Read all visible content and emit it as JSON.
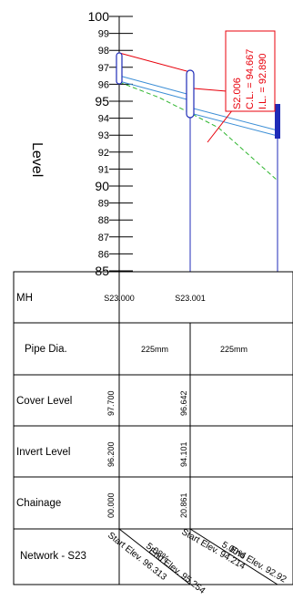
{
  "axis": {
    "title": "Level",
    "ticks": [
      {
        "value": 100,
        "label": "100",
        "major": true
      },
      {
        "value": 99,
        "label": "99",
        "major": false
      },
      {
        "value": 98,
        "label": "98",
        "major": false
      },
      {
        "value": 97,
        "label": "97",
        "major": false
      },
      {
        "value": 96,
        "label": "96",
        "major": false
      },
      {
        "value": 95,
        "label": "95",
        "major": true
      },
      {
        "value": 94,
        "label": "94",
        "major": false
      },
      {
        "value": 93,
        "label": "93",
        "major": false
      },
      {
        "value": 92,
        "label": "92",
        "major": false
      },
      {
        "value": 91,
        "label": "91",
        "major": false
      },
      {
        "value": 90,
        "label": "90",
        "major": true
      },
      {
        "value": 89,
        "label": "89",
        "major": false
      },
      {
        "value": 88,
        "label": "88",
        "major": false
      },
      {
        "value": 87,
        "label": "87",
        "major": false
      },
      {
        "value": 86,
        "label": "86",
        "major": false
      },
      {
        "value": 85,
        "label": "85",
        "major": true
      }
    ]
  },
  "annotation": {
    "manhole": "S2.006",
    "cover_level": "C.L. = 94.667",
    "invert_level": "I.L. = 92.890"
  },
  "table": {
    "rows": {
      "mh": "MH",
      "pipe_dia": "Pipe Dia.",
      "cover_level": "Cover Level",
      "invert_level": "Invert Level",
      "chainage": "Chainage",
      "network": "Network - S23"
    },
    "manholes": [
      {
        "name": "S23.000",
        "cover": "97.700",
        "invert": "96.200",
        "chainage": "00.000"
      },
      {
        "name": "S23.001",
        "cover": "96.642",
        "invert": "94.101",
        "chainage": "20.861"
      }
    ],
    "pipes": [
      {
        "dia": "225mm",
        "gradient": "5.08%",
        "start_elev": "Start Elev. 96.313",
        "end_elev": "End Elev. 95.254"
      },
      {
        "dia": "225mm",
        "gradient": "5.00%",
        "start_elev": "Start Elev. 94.214",
        "end_elev": "End Elev. 92.92"
      }
    ]
  },
  "colors": {
    "ground": "#e8000b",
    "pipe": "#3d8fd6",
    "manhole": "#1f2bb8",
    "hydraulic": "#2db52d",
    "grid": "#000000"
  }
}
